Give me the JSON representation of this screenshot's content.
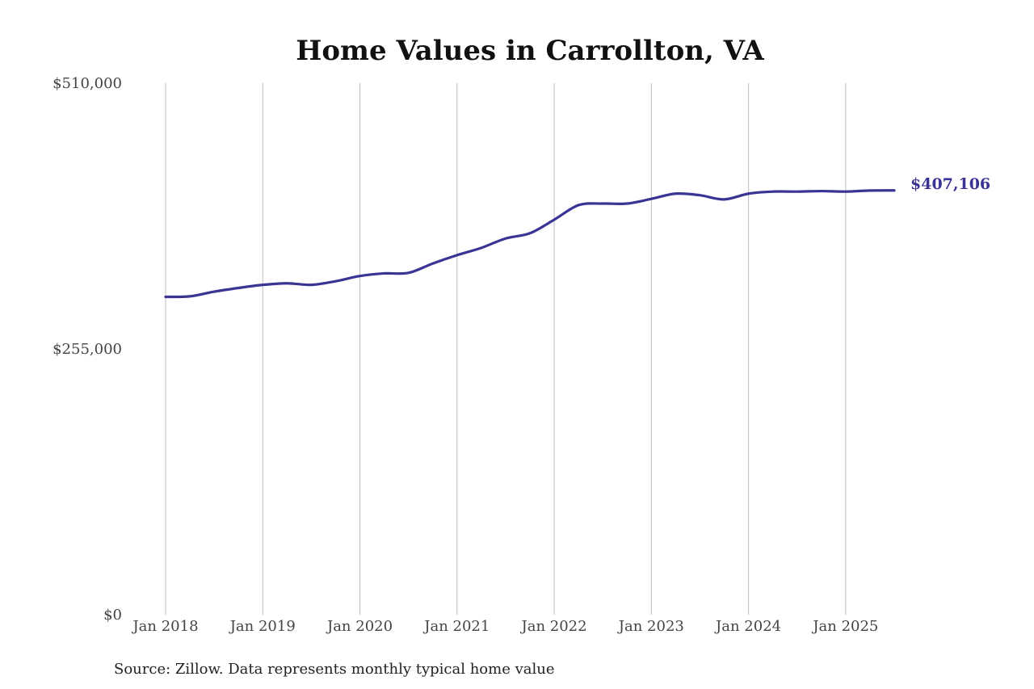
{
  "chart_data": {
    "type": "line",
    "title": "Home Values in Carrollton, VA",
    "xlabel": "",
    "ylabel": "",
    "ylim": [
      0,
      510000
    ],
    "y_ticks": [
      {
        "value": 510000,
        "label": "$510,000"
      },
      {
        "value": 255000,
        "label": "$255,000"
      },
      {
        "value": 0,
        "label": "$0"
      }
    ],
    "x_ticks": [
      {
        "value": 2018.0,
        "label": "Jan 2018"
      },
      {
        "value": 2019.0,
        "label": "Jan 2019"
      },
      {
        "value": 2020.0,
        "label": "Jan 2020"
      },
      {
        "value": 2021.0,
        "label": "Jan 2021"
      },
      {
        "value": 2022.0,
        "label": "Jan 2022"
      },
      {
        "value": 2023.0,
        "label": "Jan 2023"
      },
      {
        "value": 2024.0,
        "label": "Jan 2024"
      },
      {
        "value": 2025.0,
        "label": "Jan 2025"
      }
    ],
    "xlim": [
      2018.0,
      2025.5
    ],
    "grid": "vertical",
    "series": [
      {
        "name": "",
        "color": "#3a3494",
        "x": [
          2018.0,
          2018.25,
          2018.5,
          2018.75,
          2019.0,
          2019.25,
          2019.5,
          2019.75,
          2020.0,
          2020.25,
          2020.5,
          2020.75,
          2021.0,
          2021.25,
          2021.5,
          2021.75,
          2022.0,
          2022.25,
          2022.5,
          2022.75,
          2023.0,
          2023.25,
          2023.5,
          2023.75,
          2024.0,
          2024.25,
          2024.5,
          2024.75,
          2025.0,
          2025.25,
          2025.5
        ],
        "y": [
          305000,
          305500,
          310000,
          313500,
          316500,
          318000,
          316500,
          320000,
          325000,
          327500,
          328000,
          337000,
          345000,
          352000,
          361000,
          366000,
          379000,
          393000,
          394500,
          394500,
          399000,
          404000,
          402500,
          398500,
          404000,
          406000,
          406000,
          406500,
          406000,
          407000,
          407106
        ]
      }
    ],
    "end_label": "$407,106"
  },
  "source": "Source: Zillow. Data represents monthly typical home value"
}
